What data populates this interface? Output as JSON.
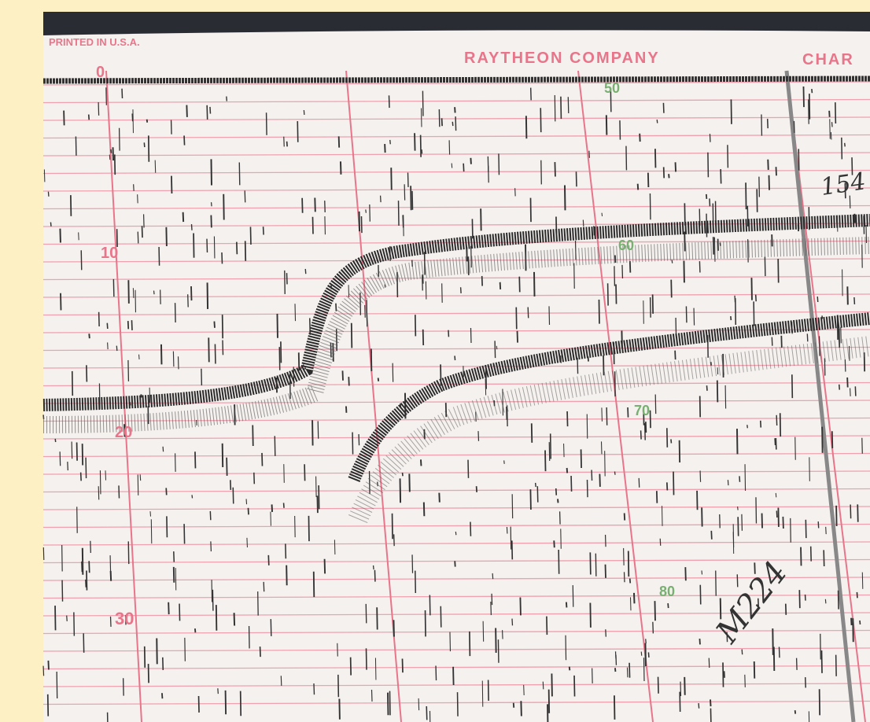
{
  "header": {
    "printed": "PRINTED IN U.S.A.",
    "company": "RAYTHEON COMPANY",
    "chart": "CHAR"
  },
  "scale_left": [
    "0",
    "10",
    "20",
    "30"
  ],
  "scale_right": [
    "50",
    "60",
    "70",
    "80"
  ],
  "annotations": {
    "depth_note": "154",
    "record_id": "M224"
  }
}
